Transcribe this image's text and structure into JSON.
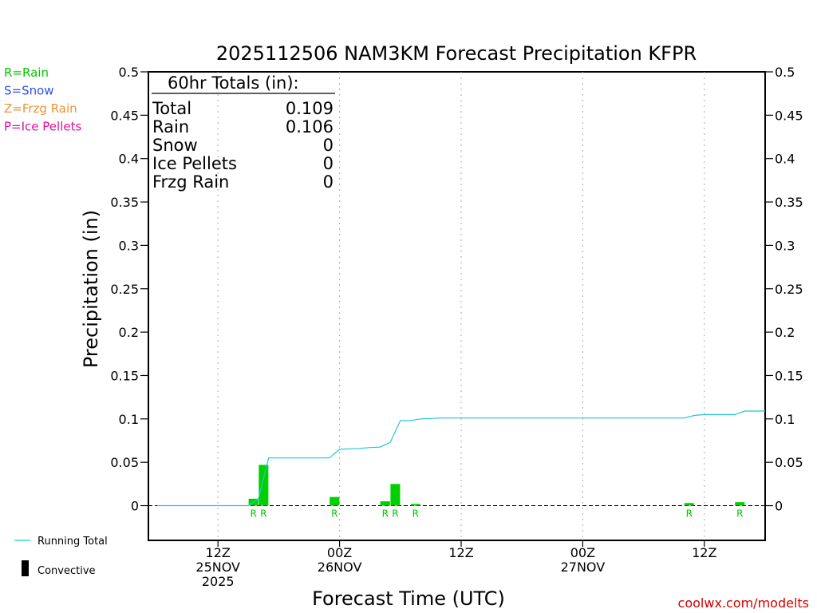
{
  "chart_data": {
    "type": "bar",
    "title": "2025112506 NAM3KM Forecast Precipitation KFPR",
    "ylabel": "Precipitation (in)",
    "xlabel": "Forecast Time (UTC)",
    "ylim": [
      -0.04,
      0.5
    ],
    "yticks": [
      "0.5",
      "0.45",
      "0.4",
      "0.35",
      "0.3",
      "0.25",
      "0.2",
      "0.15",
      "0.1",
      "0.05",
      "0"
    ],
    "ytick_values": [
      0.5,
      0.45,
      0.4,
      0.35,
      0.3,
      0.25,
      0.2,
      0.15,
      0.1,
      0.05,
      0
    ],
    "xlim_hours": [
      0,
      60
    ],
    "xticks": [
      {
        "hour": 6,
        "lines": [
          "12Z",
          "25NOV",
          "2025"
        ]
      },
      {
        "hour": 18,
        "lines": [
          "00Z",
          "26NOV"
        ]
      },
      {
        "hour": 30,
        "lines": [
          "12Z"
        ]
      },
      {
        "hour": 42,
        "lines": [
          "00Z",
          "27NOV"
        ]
      },
      {
        "hour": 54,
        "lines": [
          "12Z"
        ]
      }
    ],
    "precip_type_legend": [
      {
        "code": "R=Rain",
        "color": "#00c800"
      },
      {
        "code": "S=Snow",
        "color": "#3050f0"
      },
      {
        "code": "Z=Frzg Rain",
        "color": "#f09030"
      },
      {
        "code": "P=Ice Pellets",
        "color": "#e0109a"
      }
    ],
    "totals": {
      "header": "60hr Totals (in):",
      "rows": [
        {
          "label": "Total",
          "value": "0.109"
        },
        {
          "label": "Rain",
          "value": "0.106"
        },
        {
          "label": "Snow",
          "value": "0"
        },
        {
          "label": "Ice Pellets",
          "value": "0"
        },
        {
          "label": "Frzg Rain",
          "value": "0"
        }
      ]
    },
    "hourly_precip": [
      {
        "hour": 10,
        "value": 0.008,
        "ptype": "R"
      },
      {
        "hour": 11,
        "value": 0.047,
        "ptype": "R"
      },
      {
        "hour": 18,
        "value": 0.01,
        "ptype": "R"
      },
      {
        "hour": 23,
        "value": 0.005,
        "ptype": "R"
      },
      {
        "hour": 24,
        "value": 0.025,
        "ptype": "R"
      },
      {
        "hour": 26,
        "value": 0.002,
        "ptype": "R"
      },
      {
        "hour": 53,
        "value": 0.003,
        "ptype": "R"
      },
      {
        "hour": 58,
        "value": 0.004,
        "ptype": "R"
      }
    ],
    "running_total": {
      "hours": [
        1,
        2,
        3,
        4,
        5,
        6,
        7,
        8,
        9,
        10,
        11,
        12,
        13,
        14,
        15,
        16,
        17,
        18,
        19,
        20,
        21,
        22,
        23,
        24,
        25,
        26,
        27,
        28,
        29,
        30,
        31,
        32,
        33,
        34,
        35,
        36,
        37,
        38,
        39,
        40,
        41,
        42,
        43,
        44,
        45,
        46,
        47,
        48,
        49,
        50,
        51,
        52,
        53,
        54,
        55,
        56,
        57,
        58,
        59,
        60
      ],
      "values": [
        0,
        0,
        0,
        0,
        0,
        0,
        0,
        0,
        0,
        0.008,
        0.055,
        0.055,
        0.055,
        0.055,
        0.055,
        0.055,
        0.055,
        0.065,
        0.0655,
        0.066,
        0.067,
        0.0675,
        0.073,
        0.098,
        0.098,
        0.1,
        0.1005,
        0.101,
        0.101,
        0.101,
        0.101,
        0.101,
        0.101,
        0.101,
        0.101,
        0.101,
        0.101,
        0.101,
        0.101,
        0.101,
        0.101,
        0.101,
        0.101,
        0.101,
        0.101,
        0.101,
        0.101,
        0.101,
        0.101,
        0.101,
        0.101,
        0.101,
        0.104,
        0.105,
        0.105,
        0.105,
        0.105,
        0.109,
        0.109,
        0.109
      ]
    },
    "series_legend": [
      {
        "label": "Running Total",
        "color": "#20c8d0",
        "kind": "line"
      },
      {
        "label": "Convective",
        "color": "#000000",
        "kind": "bar"
      }
    ],
    "colors": {
      "bar": "#00d000",
      "line": "#20c8d0"
    }
  },
  "footer": {
    "credit": "coolwx.com/modelts"
  }
}
